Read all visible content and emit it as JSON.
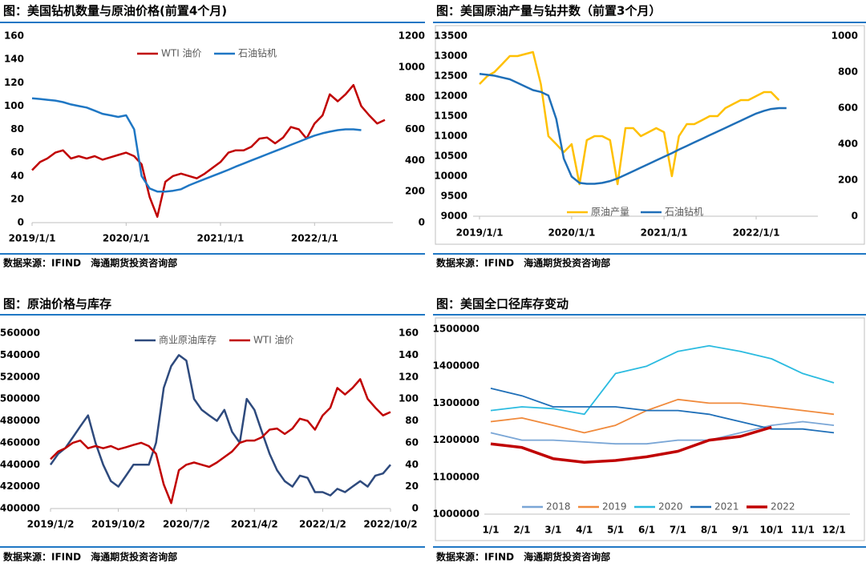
{
  "chart_data": [
    {
      "type": "line",
      "title": "图：美国钻机数量与原油价格(前置4个月)",
      "source": "数据来源：IFIND　海通期货投资咨询部",
      "legend": "top",
      "x": [
        "2019/1/1",
        "2019/2/1",
        "2019/3/1",
        "2019/4/1",
        "2019/5/1",
        "2019/6/1",
        "2019/7/1",
        "2019/8/1",
        "2019/9/1",
        "2019/10/1",
        "2019/11/1",
        "2019/12/1",
        "2020/1/1",
        "2020/2/1",
        "2020/3/1",
        "2020/4/1",
        "2020/5/1",
        "2020/6/1",
        "2020/7/1",
        "2020/8/1",
        "2020/9/1",
        "2020/10/1",
        "2020/11/1",
        "2020/12/1",
        "2021/1/1",
        "2021/2/1",
        "2021/3/1",
        "2021/4/1",
        "2021/5/1",
        "2021/6/1",
        "2021/7/1",
        "2021/8/1",
        "2021/9/1",
        "2021/10/1",
        "2021/11/1",
        "2021/12/1",
        "2022/1/1",
        "2022/2/1",
        "2022/3/1",
        "2022/4/1",
        "2022/5/1",
        "2022/6/1",
        "2022/7/1",
        "2022/8/1",
        "2022/9/1",
        "2022/10/1"
      ],
      "xlim": [
        "2019/1/1",
        "2022/11/1"
      ],
      "xticks": [
        "2019/1/1",
        "2020/1/1",
        "2021/1/1",
        "2022/1/1"
      ],
      "ylim": [
        0,
        160
      ],
      "yticks": [
        0,
        20,
        40,
        60,
        80,
        100,
        120,
        140,
        160
      ],
      "y2lim": [
        0,
        1200
      ],
      "y2ticks": [
        0,
        200,
        400,
        600,
        800,
        1000,
        1200
      ],
      "series": [
        {
          "name": "WTI 油价",
          "color": "#c00000",
          "values": [
            45,
            52,
            55,
            60,
            62,
            55,
            57,
            55,
            57,
            54,
            56,
            58,
            60,
            57,
            50,
            22,
            5,
            35,
            40,
            42,
            40,
            38,
            42,
            47,
            52,
            60,
            62,
            62,
            65,
            72,
            73,
            68,
            73,
            82,
            80,
            72,
            85,
            92,
            110,
            104,
            110,
            118,
            100,
            92,
            85,
            88
          ]
        },
        {
          "name": "石油钻机",
          "color": "#1f77c4",
          "axis": "y2",
          "values": [
            800,
            795,
            790,
            785,
            775,
            760,
            750,
            740,
            720,
            700,
            690,
            680,
            690,
            600,
            300,
            220,
            200,
            200,
            205,
            215,
            240,
            260,
            280,
            300,
            320,
            340,
            360,
            380,
            400,
            420,
            440,
            460,
            480,
            500,
            520,
            540,
            560,
            575,
            585,
            595,
            600,
            600,
            595,
            null,
            null,
            null
          ]
        }
      ]
    },
    {
      "type": "line",
      "title": "图：美国原油产量与钻井数（前置3个月）",
      "source": "数据来源：IFIND　海通期货投资咨询部",
      "legend": "bottom",
      "x": [
        "2019/1/1",
        "2019/2/1",
        "2019/3/1",
        "2019/4/1",
        "2019/5/1",
        "2019/6/1",
        "2019/7/1",
        "2019/8/1",
        "2019/9/1",
        "2019/10/1",
        "2019/11/1",
        "2019/12/1",
        "2020/1/1",
        "2020/2/1",
        "2020/3/1",
        "2020/4/1",
        "2020/5/1",
        "2020/6/1",
        "2020/7/1",
        "2020/8/1",
        "2020/9/1",
        "2020/10/1",
        "2020/11/1",
        "2020/12/1",
        "2021/1/1",
        "2021/2/1",
        "2021/3/1",
        "2021/4/1",
        "2021/5/1",
        "2021/6/1",
        "2021/7/1",
        "2021/8/1",
        "2021/9/1",
        "2021/10/1",
        "2021/11/1",
        "2021/12/1",
        "2022/1/1",
        "2022/2/1",
        "2022/3/1",
        "2022/4/1",
        "2022/5/1"
      ],
      "xlim": [
        "2019/1/1",
        "2022/7/1"
      ],
      "xticks": [
        "2019/1/1",
        "2020/1/1",
        "2021/1/1",
        "2022/1/1"
      ],
      "ylim": [
        9000,
        13500
      ],
      "yticks": [
        9000,
        9500,
        10000,
        10500,
        11000,
        11500,
        12000,
        12500,
        13000,
        13500
      ],
      "y2lim": [
        0,
        1000
      ],
      "y2ticks": [
        0,
        200,
        400,
        600,
        800,
        1000
      ],
      "series": [
        {
          "name": "原油产量",
          "color": "#ffc000",
          "values": [
            12300,
            12500,
            12600,
            12800,
            13000,
            13000,
            13050,
            13100,
            12300,
            11000,
            10800,
            10600,
            10800,
            9800,
            10900,
            11000,
            11000,
            10900,
            9800,
            11200,
            11200,
            11000,
            11100,
            11200,
            11100,
            10000,
            11000,
            11300,
            11300,
            11400,
            11500,
            11500,
            11700,
            11800,
            11900,
            11900,
            12000,
            12100,
            12100,
            11900,
            null
          ]
        },
        {
          "name": "石油钻机",
          "color": "#1f6fb8",
          "axis": "y2",
          "values": [
            790,
            785,
            780,
            770,
            760,
            740,
            720,
            700,
            690,
            670,
            540,
            320,
            220,
            185,
            180,
            180,
            185,
            195,
            210,
            230,
            250,
            270,
            290,
            310,
            330,
            350,
            370,
            390,
            410,
            430,
            450,
            470,
            490,
            510,
            530,
            550,
            570,
            585,
            595,
            600,
            600
          ]
        }
      ]
    },
    {
      "type": "line",
      "title": "图：原油价格与库存",
      "source": "数据来源：IFIND　海通期货投资咨询部",
      "legend": "top",
      "x": [
        "2019/1/2",
        "2019/2/2",
        "2019/3/2",
        "2019/4/2",
        "2019/5/2",
        "2019/6/2",
        "2019/7/2",
        "2019/8/2",
        "2019/9/2",
        "2019/10/2",
        "2019/11/2",
        "2019/12/2",
        "2020/1/2",
        "2020/2/2",
        "2020/3/2",
        "2020/4/2",
        "2020/5/2",
        "2020/6/2",
        "2020/7/2",
        "2020/8/2",
        "2020/9/2",
        "2020/10/2",
        "2020/11/2",
        "2020/12/2",
        "2021/1/2",
        "2021/2/2",
        "2021/3/2",
        "2021/4/2",
        "2021/5/2",
        "2021/6/2",
        "2021/7/2",
        "2021/8/2",
        "2021/9/2",
        "2021/10/2",
        "2021/11/2",
        "2021/12/2",
        "2022/1/2",
        "2022/2/2",
        "2022/3/2",
        "2022/4/2",
        "2022/5/2",
        "2022/6/2",
        "2022/7/2",
        "2022/8/2",
        "2022/9/2",
        "2022/10/2"
      ],
      "xlim": [
        "2019/1/2",
        "2022/10/2"
      ],
      "xticks": [
        "2019/1/2",
        "2019/10/2",
        "2020/7/2",
        "2021/4/2",
        "2022/1/2",
        "2022/10/2"
      ],
      "ylim": [
        400000,
        560000
      ],
      "yticks": [
        400000,
        420000,
        440000,
        460000,
        480000,
        500000,
        520000,
        540000,
        560000
      ],
      "y2lim": [
        0,
        160
      ],
      "y2ticks": [
        0,
        20,
        40,
        60,
        80,
        100,
        120,
        140,
        160
      ],
      "series": [
        {
          "name": "商业原油库存",
          "color": "#2e4a7d",
          "values": [
            440000,
            450000,
            455000,
            465000,
            475000,
            485000,
            460000,
            440000,
            425000,
            420000,
            430000,
            440000,
            440000,
            440000,
            460000,
            510000,
            530000,
            540000,
            535000,
            500000,
            490000,
            485000,
            480000,
            490000,
            470000,
            460000,
            500000,
            490000,
            470000,
            450000,
            435000,
            425000,
            420000,
            430000,
            428000,
            415000,
            415000,
            412000,
            418000,
            415000,
            420000,
            425000,
            420000,
            430000,
            432000,
            440000
          ]
        },
        {
          "name": "WTI 油价",
          "color": "#c00000",
          "axis": "y2",
          "values": [
            45,
            52,
            55,
            60,
            62,
            55,
            57,
            55,
            57,
            54,
            56,
            58,
            60,
            57,
            50,
            22,
            5,
            35,
            40,
            42,
            40,
            38,
            42,
            47,
            52,
            60,
            62,
            62,
            65,
            72,
            73,
            68,
            73,
            82,
            80,
            72,
            85,
            92,
            110,
            104,
            110,
            118,
            100,
            92,
            85,
            88
          ]
        }
      ]
    },
    {
      "type": "line",
      "title": "图：美国全口径库存变动",
      "source": "数据来源：IFIND　海通期货投资咨询部",
      "legend": "bottom",
      "categories": [
        "1/1",
        "2/1",
        "3/1",
        "4/1",
        "5/1",
        "6/1",
        "7/1",
        "8/1",
        "9/1",
        "10/1",
        "11/1",
        "12/1"
      ],
      "ylim": [
        1000000,
        1500000
      ],
      "yticks": [
        1000000,
        1100000,
        1200000,
        1300000,
        1400000,
        1500000
      ],
      "series": [
        {
          "name": "2018",
          "color": "#7aa6d6",
          "values": [
            1220000,
            1200000,
            1200000,
            1195000,
            1190000,
            1190000,
            1200000,
            1200000,
            1220000,
            1240000,
            1250000,
            1240000
          ]
        },
        {
          "name": "2019",
          "color": "#f08a3c",
          "values": [
            1250000,
            1260000,
            1240000,
            1220000,
            1240000,
            1280000,
            1310000,
            1300000,
            1300000,
            1290000,
            1280000,
            1270000
          ]
        },
        {
          "name": "2020",
          "color": "#2bbbe0",
          "values": [
            1280000,
            1290000,
            1285000,
            1270000,
            1380000,
            1400000,
            1440000,
            1455000,
            1440000,
            1420000,
            1380000,
            1355000
          ]
        },
        {
          "name": "2021",
          "color": "#1f6fb8",
          "values": [
            1340000,
            1320000,
            1290000,
            1290000,
            1290000,
            1280000,
            1280000,
            1270000,
            1250000,
            1230000,
            1230000,
            1220000
          ]
        },
        {
          "name": "2022",
          "color": "#c00000",
          "line_width": 3.5,
          "values": [
            1190000,
            1180000,
            1150000,
            1140000,
            1145000,
            1155000,
            1170000,
            1200000,
            1210000,
            1235000,
            null,
            null
          ]
        }
      ]
    }
  ]
}
